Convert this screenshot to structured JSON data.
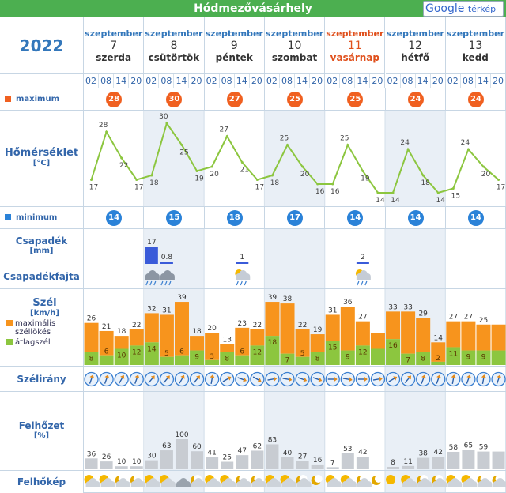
{
  "title": "Hódmezővásárhely",
  "google_button": {
    "brand": "Google",
    "label": "térkép"
  },
  "year": "2022",
  "days": [
    {
      "month": "szeptember",
      "day": "7",
      "weekday": "szerda",
      "sunday": false,
      "max": "28",
      "min": "14"
    },
    {
      "month": "szeptember",
      "day": "8",
      "weekday": "csütörtök",
      "sunday": false,
      "max": "30",
      "min": "15"
    },
    {
      "month": "szeptember",
      "day": "9",
      "weekday": "péntek",
      "sunday": false,
      "max": "27",
      "min": "18"
    },
    {
      "month": "szeptember",
      "day": "10",
      "weekday": "szombat",
      "sunday": false,
      "max": "25",
      "min": "17"
    },
    {
      "month": "szeptember",
      "day": "11",
      "weekday": "vasárnap",
      "sunday": true,
      "max": "25",
      "min": "14"
    },
    {
      "month": "szeptember",
      "day": "12",
      "weekday": "hétfő",
      "sunday": false,
      "max": "24",
      "min": "14"
    },
    {
      "month": "szeptember",
      "day": "13",
      "weekday": "kedd",
      "sunday": false,
      "max": "24",
      "min": "14"
    }
  ],
  "hours": [
    "02",
    "08",
    "14",
    "20"
  ],
  "labels": {
    "maximum": "maximum",
    "minimum": "minimum",
    "temperature": "Hőmérséklet",
    "temperature_unit": "[°C]",
    "precip": "Csapadék",
    "precip_unit": "[mm]",
    "precip_type": "Csapadékfajta",
    "wind": "Szél",
    "wind_unit": "[km/h]",
    "wind_gust": "maximális széllökés",
    "wind_avg": "átlagszél",
    "wind_dir": "Szélirány",
    "cloud": "Felhőzet",
    "cloud_unit": "[%]",
    "cloud_img": "Felhőkép"
  },
  "colors": {
    "header": "#4caf50",
    "max": "#f06020",
    "min": "#2a82d8",
    "gust": "#f7941d",
    "avg": "#8cc63f",
    "temp_line": "#8cc63f",
    "precip": "#3a5bd9",
    "cloud": "#c8ccd2"
  },
  "temperature": [
    17,
    28,
    22,
    17,
    18,
    30,
    25,
    19,
    20,
    27,
    21,
    17,
    18,
    25,
    20,
    16,
    16,
    25,
    19,
    14,
    14,
    24,
    18,
    14,
    15,
    24,
    20,
    17
  ],
  "precip": [
    "",
    "",
    "",
    "",
    "17",
    "0.8",
    "",
    "",
    "",
    "",
    "1",
    "",
    "",
    "",
    "",
    "",
    "",
    "",
    "2",
    "",
    "",
    "",
    "",
    "",
    "",
    "",
    "",
    ""
  ],
  "precip_mm": [
    0,
    0,
    0,
    0,
    17,
    0.8,
    0,
    0,
    0,
    0,
    1,
    0,
    0,
    0,
    0,
    0,
    0,
    0,
    2,
    0,
    0,
    0,
    0,
    0,
    0,
    0,
    0,
    0
  ],
  "precip_type_icons": [
    "",
    "",
    "",
    "",
    "snow-rain-icon",
    "snow-rain-icon",
    "",
    "",
    "",
    "",
    "sun-rain-icon",
    "",
    "",
    "",
    "",
    "",
    "",
    "",
    "sun-rain-icon",
    "",
    "",
    "",
    "",
    "",
    "",
    "",
    "",
    ""
  ],
  "wind_gust": [
    26,
    21,
    18,
    22,
    32,
    31,
    39,
    18,
    20,
    13,
    23,
    22,
    39,
    38,
    22,
    19,
    31,
    36,
    27,
    20,
    33,
    33,
    29,
    14,
    27,
    27,
    25,
    25
  ],
  "wind_avg": [
    8,
    6,
    10,
    12,
    14,
    5,
    6,
    9,
    3,
    8,
    6,
    12,
    18,
    7,
    5,
    8,
    15,
    9,
    12,
    10,
    16,
    7,
    8,
    2,
    11,
    9,
    9,
    9
  ],
  "wind_gust_labels": [
    "26",
    "21",
    "18",
    "22",
    "32",
    "31",
    "39",
    "18",
    "20",
    "13",
    "23",
    "22",
    "39",
    "38",
    "22",
    "19",
    "31",
    "36",
    "27",
    "",
    "33",
    "33",
    "29",
    "14",
    "27",
    "27",
    "25",
    ""
  ],
  "wind_avg_labels": [
    "8",
    "6",
    "10",
    "12",
    "14",
    "5",
    "6",
    "9",
    "3",
    "8",
    "6",
    "12",
    "18",
    "7",
    "5",
    "8",
    "15",
    "9",
    "12",
    "",
    "16",
    "7",
    "8",
    "2",
    "11",
    "9",
    "9",
    ""
  ],
  "wind_dir_deg": [
    20,
    20,
    30,
    20,
    40,
    40,
    30,
    40,
    10,
    60,
    110,
    120,
    80,
    100,
    110,
    110,
    90,
    100,
    90,
    80,
    60,
    40,
    20,
    20,
    10,
    20,
    10,
    20
  ],
  "cloud": [
    36,
    26,
    10,
    10,
    30,
    63,
    100,
    60,
    41,
    25,
    47,
    62,
    83,
    40,
    27,
    16,
    7,
    53,
    42,
    0,
    8,
    11,
    38,
    42,
    58,
    65,
    59,
    59
  ],
  "cloud_labels": [
    "36",
    "26",
    "10",
    "10",
    "30",
    "63",
    "100",
    "60",
    "41",
    "25",
    "47",
    "62",
    "83",
    "40",
    "27",
    "16",
    "7",
    "53",
    "42",
    "",
    "8",
    "11",
    "38",
    "42",
    "58",
    "65",
    "59",
    ""
  ],
  "cloud_icons": [
    "sun-cloud-icon",
    "sun-cloud-icon",
    "moon-cloud-icon",
    "moon-cloud-icon",
    "sun-cloud-icon",
    "sun-cloud-icon",
    "cloud-icon",
    "moon-cloud-icon",
    "sun-cloud-icon",
    "sun-cloud-icon",
    "moon-cloud-icon",
    "moon-cloud-icon",
    "sun-cloud-icon",
    "sun-cloud-icon",
    "moon-cloud-icon",
    "moon-icon",
    "sun-cloud-icon",
    "sun-cloud-icon",
    "moon-cloud-icon",
    "moon-icon",
    "sun-icon",
    "sun-cloud-icon",
    "moon-cloud-icon",
    "moon-cloud-icon",
    "sun-cloud-icon",
    "sun-cloud-icon",
    "moon-cloud-icon",
    "moon-cloud-icon"
  ]
}
